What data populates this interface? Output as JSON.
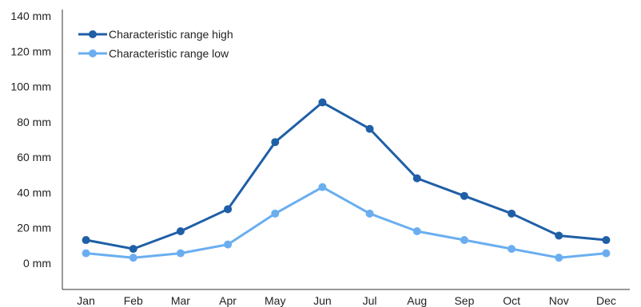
{
  "chart_data": {
    "type": "line",
    "title": "",
    "xlabel": "",
    "ylabel": "",
    "categories": [
      "Jan",
      "Feb",
      "Mar",
      "Apr",
      "May",
      "Jun",
      "Jul",
      "Aug",
      "Sep",
      "Oct",
      "Nov",
      "Dec"
    ],
    "y_unit": "mm",
    "ylim": [
      -15,
      140
    ],
    "y_ticks": [
      0,
      20,
      40,
      60,
      80,
      100,
      120,
      140
    ],
    "y_tick_labels": [
      "0 mm",
      "20 mm",
      "40 mm",
      "60 mm",
      "80 mm",
      "100 mm",
      "120 mm",
      "140 mm"
    ],
    "grid": false,
    "legend_position": "top-left",
    "series": [
      {
        "name": "Characteristic range high",
        "color": "#1f5fa6",
        "values": [
          13,
          8,
          18,
          30.5,
          68.5,
          91,
          76,
          48,
          38,
          28,
          15.5,
          13
        ]
      },
      {
        "name": "Characteristic range low",
        "color": "#6aaef0",
        "values": [
          5.5,
          3,
          5.5,
          10.5,
          28,
          43,
          28,
          18,
          13,
          8,
          3,
          5.5
        ]
      }
    ]
  }
}
